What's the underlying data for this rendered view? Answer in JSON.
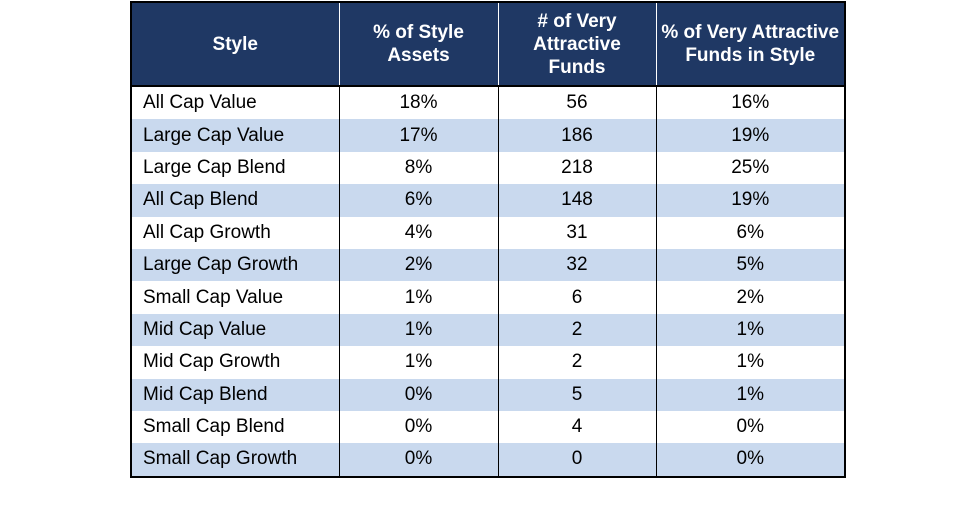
{
  "table": {
    "headers": [
      "Style",
      "% of Style Assets",
      "# of Very Attractive Funds",
      "% of Very Attractive Funds in Style"
    ],
    "rows": [
      [
        "All Cap Value",
        "18%",
        "56",
        "16%"
      ],
      [
        "Large Cap Value",
        "17%",
        "186",
        "19%"
      ],
      [
        "Large Cap Blend",
        "8%",
        "218",
        "25%"
      ],
      [
        "All Cap Blend",
        "6%",
        "148",
        "19%"
      ],
      [
        "All Cap Growth",
        "4%",
        "31",
        "6%"
      ],
      [
        "Large Cap Growth",
        "2%",
        "32",
        "5%"
      ],
      [
        "Small Cap Value",
        "1%",
        "6",
        "2%"
      ],
      [
        "Mid Cap Value",
        "1%",
        "2",
        "1%"
      ],
      [
        "Mid Cap Growth",
        "1%",
        "2",
        "1%"
      ],
      [
        "Mid Cap Blend",
        "0%",
        "5",
        "1%"
      ],
      [
        "Small Cap Blend",
        "0%",
        "4",
        "0%"
      ],
      [
        "Small Cap Growth",
        "0%",
        "0",
        "0%"
      ]
    ]
  },
  "colors": {
    "header_background": "#1f3864",
    "header_text": "#ffffff",
    "band_row": "#c9d9ee",
    "plain_row": "#ffffff",
    "border": "#000000"
  }
}
